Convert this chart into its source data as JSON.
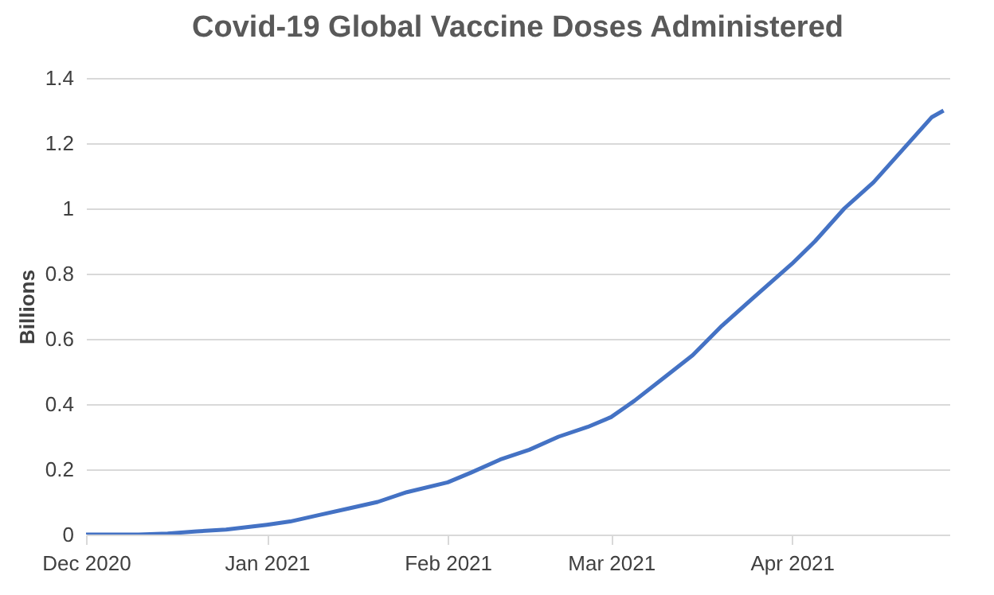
{
  "chart_data": {
    "type": "line",
    "title": "Covid-19 Global Vaccine Doses Administered",
    "ylabel": "Billions",
    "x": [
      "2020-12-01",
      "2020-12-10",
      "2020-12-15",
      "2020-12-20",
      "2020-12-25",
      "2021-01-01",
      "2021-01-05",
      "2021-01-10",
      "2021-01-15",
      "2021-01-20",
      "2021-01-25",
      "2021-02-01",
      "2021-02-05",
      "2021-02-10",
      "2021-02-15",
      "2021-02-20",
      "2021-02-25",
      "2021-03-01",
      "2021-03-05",
      "2021-03-10",
      "2021-03-15",
      "2021-03-20",
      "2021-03-25",
      "2021-04-01",
      "2021-04-05",
      "2021-04-10",
      "2021-04-15",
      "2021-04-20",
      "2021-04-25",
      "2021-04-27"
    ],
    "series": [
      {
        "color": "#4472c4",
        "values": [
          0,
          0,
          0.003,
          0.01,
          0.015,
          0.03,
          0.04,
          0.06,
          0.08,
          0.1,
          0.13,
          0.16,
          0.19,
          0.23,
          0.26,
          0.3,
          0.33,
          0.36,
          0.41,
          0.48,
          0.55,
          0.64,
          0.72,
          0.83,
          0.9,
          1.0,
          1.08,
          1.18,
          1.28,
          1.3
        ]
      }
    ],
    "xlim": [
      "2020-12-01",
      "2021-04-28"
    ],
    "xticks": [
      {
        "value": "2020-12-01",
        "label": "Dec 2020"
      },
      {
        "value": "2021-01-01",
        "label": "Jan 2021"
      },
      {
        "value": "2021-02-01",
        "label": "Feb 2021"
      },
      {
        "value": "2021-03-01",
        "label": "Mar 2021"
      },
      {
        "value": "2021-04-01",
        "label": "Apr 2021"
      }
    ],
    "ylim": [
      0,
      1.4
    ],
    "yticks": [
      0,
      0.2,
      0.4,
      0.6,
      0.8,
      1,
      1.2,
      1.4
    ],
    "grid": "y"
  }
}
